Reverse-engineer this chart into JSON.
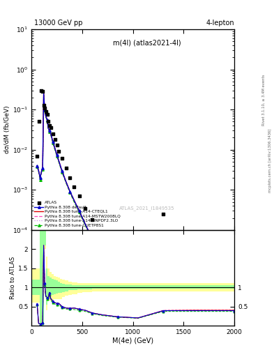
{
  "title_top": "13000 GeV pp",
  "title_top_right": "4-lepton",
  "plot_title": "m(4l) (atlas2021-4l)",
  "watermark": "ATLAS_2021_I1849535",
  "xlabel": "M(4e) (GeV)",
  "ylabel_main": "dσ/dM (fb/GeV)",
  "ylabel_ratio": "Ratio to ATLAS",
  "right_label_top": "Rivet 3.1.10, ≥ 3.4M events",
  "right_label_bottom": "mcplots.cern.ch [arXiv:1306.3436]",
  "xlim": [
    0,
    2000
  ],
  "ylim_main": [
    0.0001,
    10
  ],
  "atlas_x": [
    55,
    75,
    95,
    110,
    120,
    130,
    140,
    155,
    165,
    175,
    190,
    210,
    230,
    250,
    270,
    300,
    340,
    380,
    420,
    470,
    530,
    600,
    700,
    850,
    1050,
    1300
  ],
  "atlas_y": [
    0.007,
    0.05,
    0.3,
    0.28,
    0.13,
    0.11,
    0.09,
    0.075,
    0.05,
    0.04,
    0.035,
    0.025,
    0.018,
    0.013,
    0.009,
    0.006,
    0.0035,
    0.002,
    0.0012,
    0.0007,
    0.00035,
    0.00018,
    8e-05,
    3e-05,
    1e-05,
    0.00025
  ],
  "pythia_x": [
    55,
    70,
    85,
    100,
    110,
    120,
    130,
    140,
    155,
    165,
    175,
    190,
    210,
    230,
    250,
    270,
    300,
    340,
    380,
    420,
    470,
    530,
    600,
    700,
    850,
    1050,
    1300,
    1600,
    2000
  ],
  "py_default_y": [
    0.004,
    0.003,
    0.002,
    0.003,
    0.0035,
    0.25,
    0.1,
    0.07,
    0.055,
    0.035,
    0.03,
    0.025,
    0.016,
    0.011,
    0.0075,
    0.0052,
    0.003,
    0.0016,
    0.0009,
    0.00055,
    0.0003,
    0.00014,
    6e-05,
    2.2e-05,
    7e-06,
    2e-06,
    4e-07,
    8e-08,
    1.5e-08
  ],
  "py_cteql1_y": [
    0.004,
    0.003,
    0.002,
    0.003,
    0.0035,
    0.25,
    0.1,
    0.07,
    0.055,
    0.035,
    0.03,
    0.025,
    0.016,
    0.011,
    0.0075,
    0.0052,
    0.003,
    0.0016,
    0.0009,
    0.00055,
    0.0003,
    0.00014,
    6e-05,
    2.2e-05,
    7e-06,
    2e-06,
    4e-07,
    8e-08,
    1.5e-08
  ],
  "py_mstw_y": [
    0.004,
    0.003,
    0.002,
    0.003,
    0.0035,
    0.25,
    0.1,
    0.07,
    0.055,
    0.035,
    0.03,
    0.025,
    0.016,
    0.011,
    0.0075,
    0.0052,
    0.003,
    0.0016,
    0.0009,
    0.00055,
    0.0003,
    0.00014,
    6e-05,
    2.2e-05,
    7e-06,
    2e-06,
    4.2e-07,
    8.2e-08,
    1.6e-08
  ],
  "py_nnpdf_y": [
    0.004,
    0.003,
    0.002,
    0.003,
    0.0035,
    0.25,
    0.1,
    0.07,
    0.055,
    0.035,
    0.03,
    0.025,
    0.016,
    0.011,
    0.0075,
    0.0052,
    0.003,
    0.0016,
    0.0009,
    0.00055,
    0.0003,
    0.00014,
    6e-05,
    2.2e-05,
    7e-06,
    2e-06,
    4.1e-07,
    8.1e-08,
    1.55e-08
  ],
  "py_cuetp_y": [
    0.0038,
    0.0028,
    0.0018,
    0.0028,
    0.0032,
    0.23,
    0.095,
    0.066,
    0.052,
    0.033,
    0.028,
    0.023,
    0.015,
    0.01,
    0.007,
    0.0048,
    0.0028,
    0.0015,
    0.00085,
    0.0005,
    0.00028,
    0.00013,
    5.5e-05,
    2e-05,
    6.5e-06,
    1.9e-06,
    3.8e-07,
    7.5e-08,
    1.4e-08
  ],
  "ratio_x_edges": [
    0,
    80,
    100,
    120,
    140,
    160,
    180,
    200,
    220,
    240,
    260,
    280,
    300,
    330,
    360,
    400,
    450,
    500,
    600,
    800,
    1000,
    1300,
    2000
  ],
  "ratio_yellow_low": [
    0.6,
    0.0,
    0.0,
    2.0,
    0.4,
    0.65,
    0.65,
    0.65,
    0.7,
    0.7,
    0.7,
    0.7,
    0.75,
    0.78,
    0.8,
    0.82,
    0.85,
    0.87,
    0.9,
    0.9,
    0.9,
    0.9,
    0.9
  ],
  "ratio_yellow_high": [
    1.5,
    2.5,
    2.5,
    2.5,
    1.8,
    1.5,
    1.4,
    1.35,
    1.3,
    1.28,
    1.25,
    1.22,
    1.2,
    1.18,
    1.15,
    1.13,
    1.12,
    1.12,
    1.12,
    1.12,
    1.12,
    1.12,
    1.12
  ],
  "ratio_green_low": [
    0.8,
    0.0,
    0.0,
    2.1,
    0.55,
    0.75,
    0.78,
    0.8,
    0.82,
    0.83,
    0.85,
    0.86,
    0.88,
    0.9,
    0.92,
    0.93,
    0.94,
    0.95,
    0.96,
    0.96,
    0.96,
    0.96,
    0.96
  ],
  "ratio_green_high": [
    1.2,
    2.5,
    2.5,
    2.5,
    1.5,
    1.3,
    1.25,
    1.22,
    1.2,
    1.18,
    1.15,
    1.12,
    1.1,
    1.08,
    1.07,
    1.06,
    1.05,
    1.05,
    1.05,
    1.05,
    1.05,
    1.05,
    1.05
  ],
  "ratio_py_x": [
    55,
    70,
    85,
    100,
    110,
    120,
    130,
    140,
    155,
    165,
    175,
    190,
    210,
    230,
    250,
    270,
    300,
    340,
    380,
    420,
    470,
    530,
    600,
    700,
    850,
    1050,
    1300,
    1600,
    2000
  ],
  "ratio_default": [
    0.57,
    0.06,
    0.04,
    0.06,
    0.07,
    2.1,
    1.11,
    0.78,
    0.73,
    0.7,
    0.86,
    0.71,
    0.64,
    0.6,
    0.58,
    0.58,
    0.5,
    0.46,
    0.45,
    0.46,
    0.43,
    0.4,
    0.33,
    0.28,
    0.23,
    0.2,
    0.39,
    0.39,
    0.39
  ],
  "ratio_cteql1": [
    0.57,
    0.06,
    0.04,
    0.06,
    0.07,
    2.1,
    1.11,
    0.78,
    0.73,
    0.7,
    0.86,
    0.71,
    0.64,
    0.6,
    0.58,
    0.58,
    0.5,
    0.46,
    0.45,
    0.46,
    0.43,
    0.4,
    0.33,
    0.28,
    0.23,
    0.2,
    0.39,
    0.4,
    0.4
  ],
  "ratio_mstw": [
    0.57,
    0.06,
    0.04,
    0.06,
    0.07,
    2.1,
    1.11,
    0.78,
    0.73,
    0.7,
    0.86,
    0.71,
    0.64,
    0.6,
    0.58,
    0.58,
    0.5,
    0.46,
    0.45,
    0.46,
    0.43,
    0.4,
    0.33,
    0.28,
    0.23,
    0.2,
    0.4,
    0.41,
    0.41
  ],
  "ratio_nnpdf": [
    0.57,
    0.06,
    0.04,
    0.06,
    0.07,
    2.1,
    1.11,
    0.78,
    0.73,
    0.7,
    0.86,
    0.71,
    0.64,
    0.6,
    0.58,
    0.58,
    0.5,
    0.46,
    0.45,
    0.46,
    0.43,
    0.4,
    0.33,
    0.28,
    0.23,
    0.2,
    0.39,
    0.39,
    0.39
  ],
  "ratio_cuetp": [
    0.54,
    0.056,
    0.036,
    0.056,
    0.064,
    1.92,
    1.06,
    0.73,
    0.69,
    0.66,
    0.8,
    0.66,
    0.6,
    0.56,
    0.54,
    0.54,
    0.47,
    0.43,
    0.43,
    0.42,
    0.4,
    0.37,
    0.31,
    0.26,
    0.22,
    0.19,
    0.37,
    0.37,
    0.37
  ],
  "color_default": "#0000cc",
  "color_cteql1": "#dd0000",
  "color_mstw": "#ff44bb",
  "color_nnpdf": "#cc88ee",
  "color_cuetp": "#00bb00",
  "color_yellow": "#ffff99",
  "color_green": "#99ff99",
  "atlas_color": "#000000"
}
